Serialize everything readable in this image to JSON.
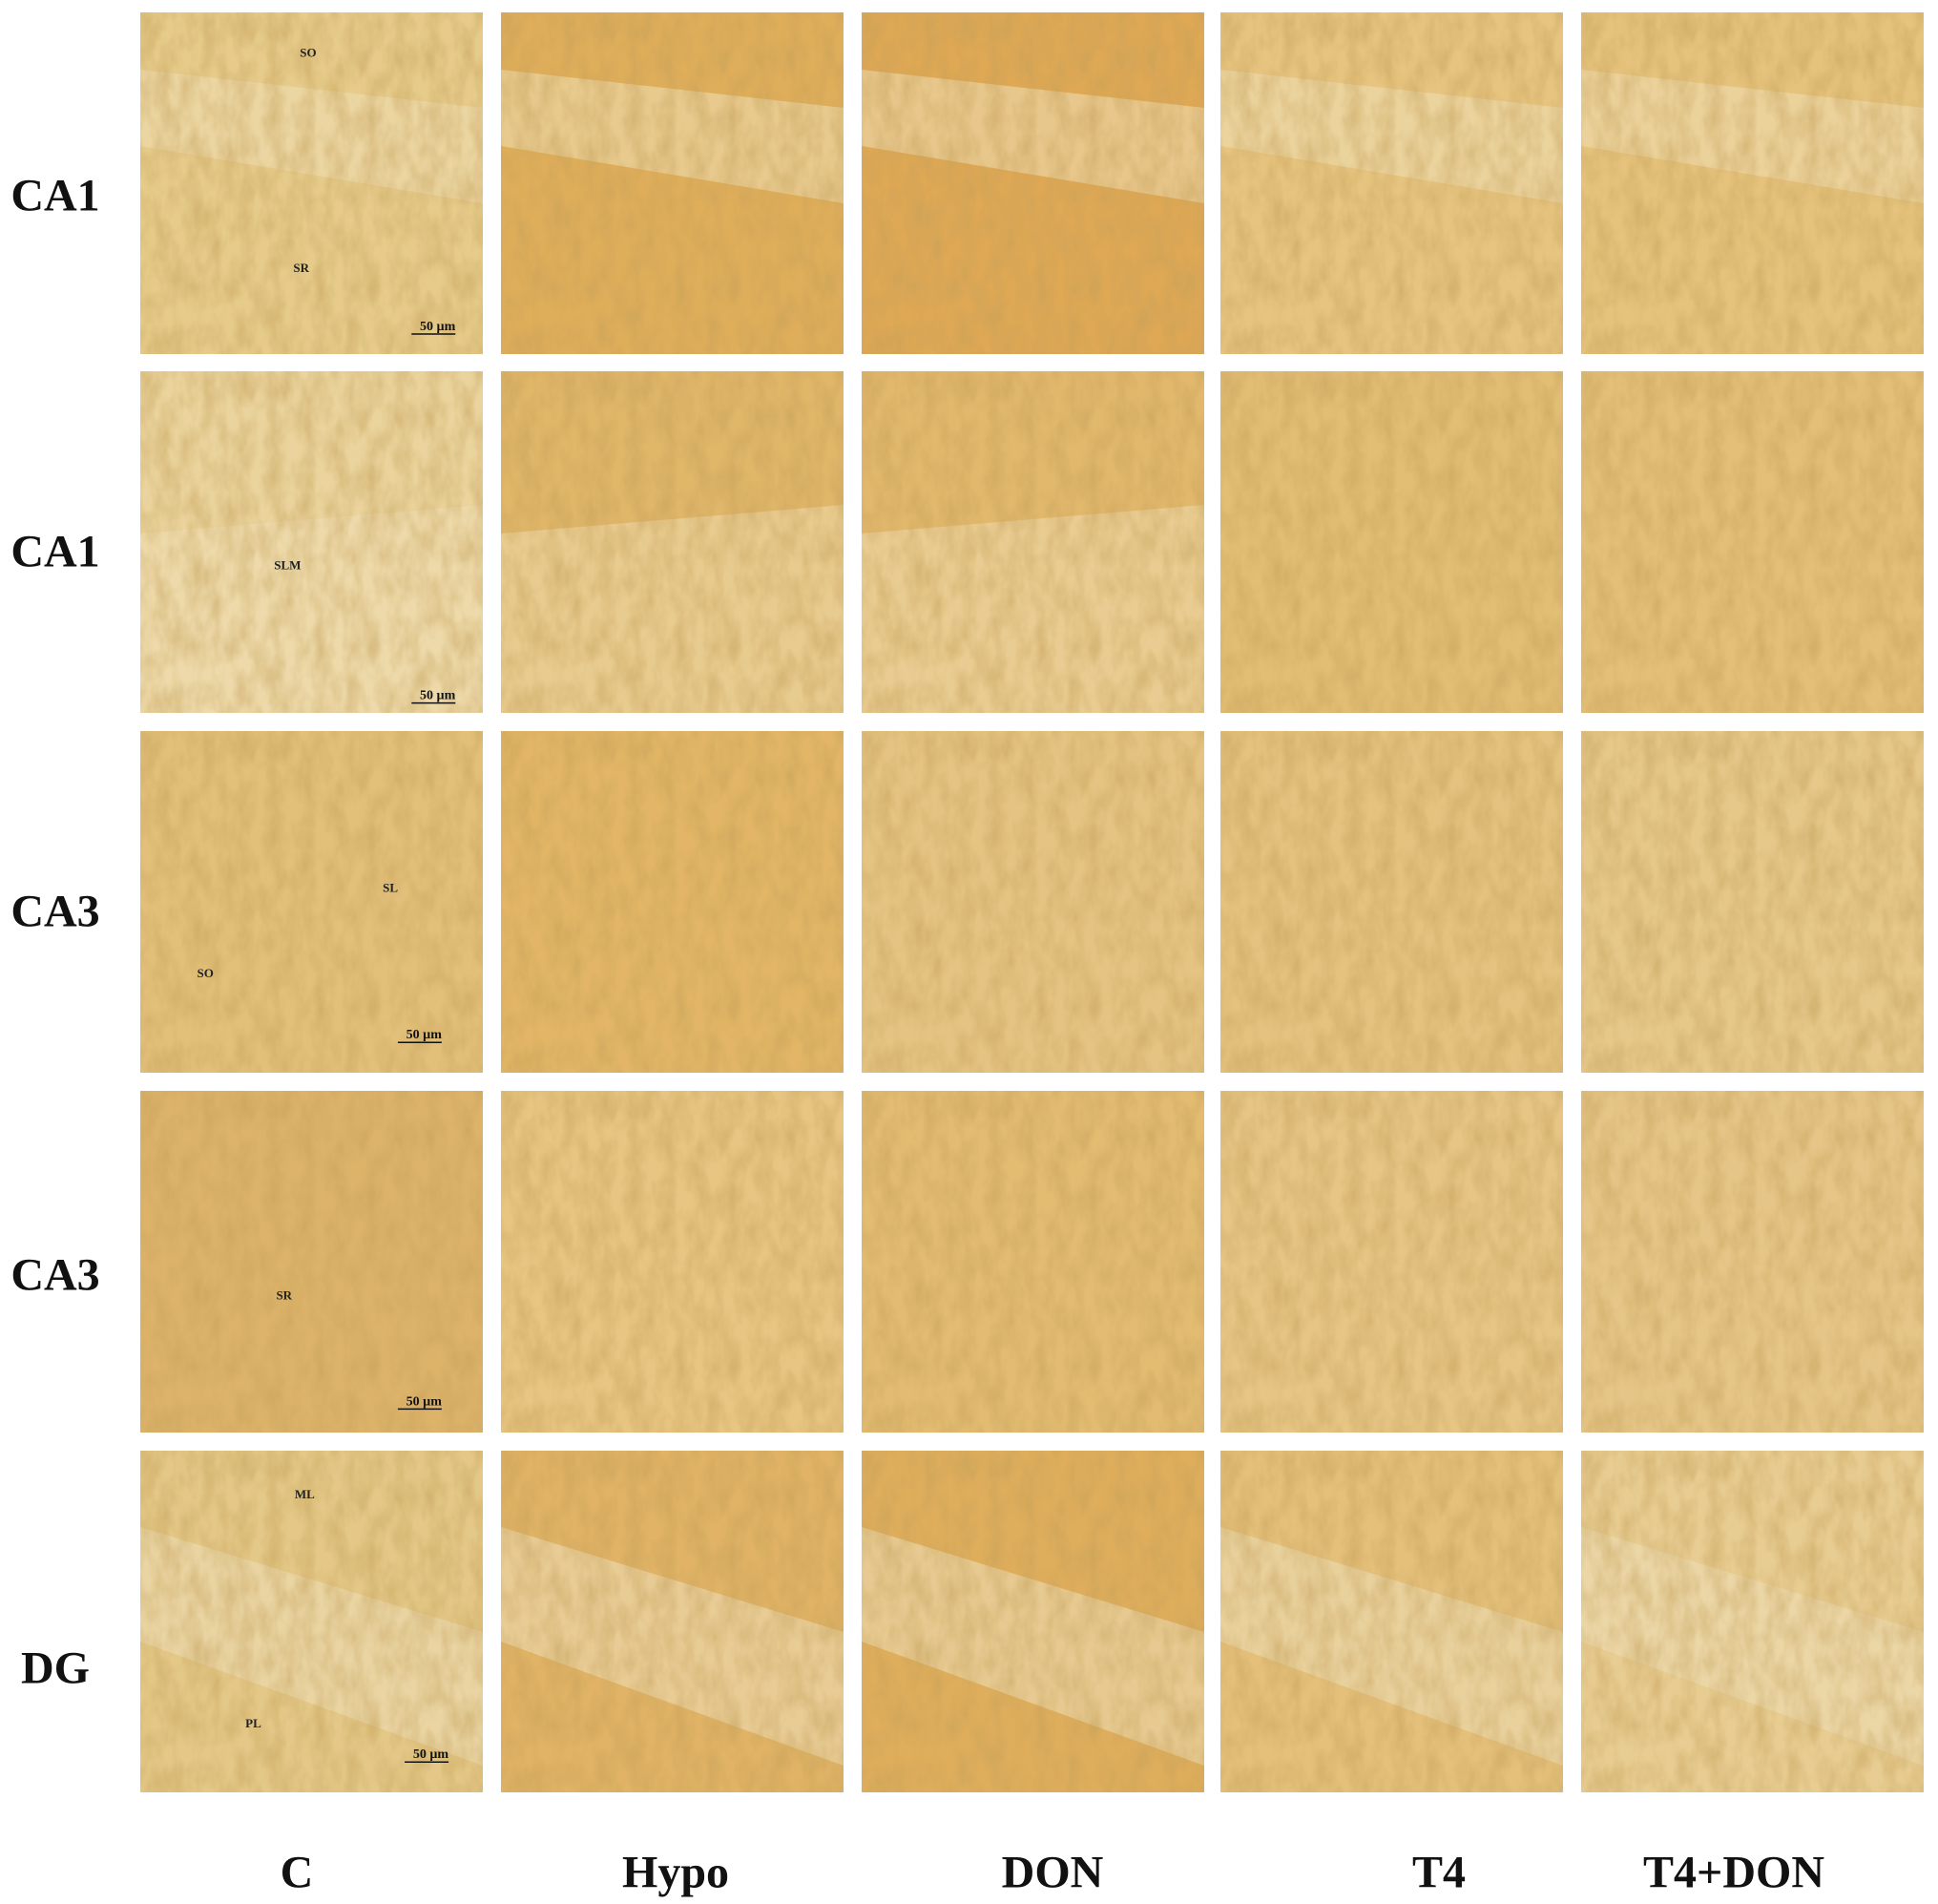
{
  "rows": [
    {
      "label": "CA1",
      "annotations": [
        "SO",
        "SR"
      ],
      "scale_bar": "50 µm"
    },
    {
      "label": "CA1",
      "annotations": [
        "SLM"
      ],
      "scale_bar": "50 µm"
    },
    {
      "label": "CA3",
      "annotations": [
        "SL",
        "SO"
      ],
      "scale_bar": "50 µm"
    },
    {
      "label": "CA3",
      "annotations": [
        "SR"
      ],
      "scale_bar": "50 µm"
    },
    {
      "label": "DG",
      "annotations": [
        "ML",
        "PL"
      ],
      "scale_bar": "50 µm"
    }
  ],
  "columns": [
    "C",
    "Hypo",
    "DON",
    "T4",
    "T4+DON"
  ]
}
